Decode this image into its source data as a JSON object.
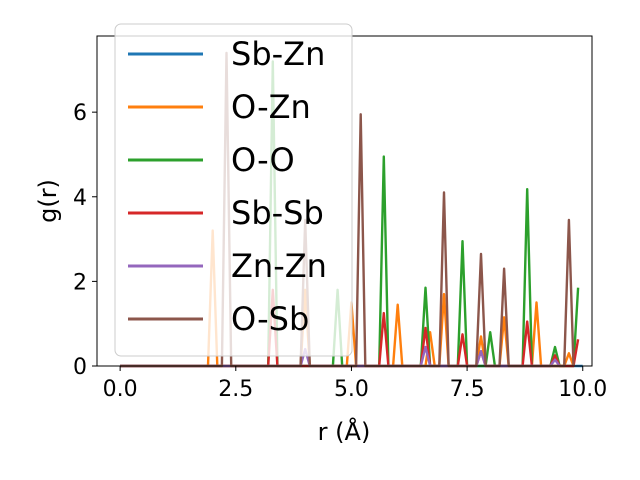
{
  "chart_data": {
    "type": "line",
    "title": "",
    "xlabel": "r (Å)",
    "ylabel": "g(r)",
    "xlim": [
      -0.5,
      10.2
    ],
    "ylim": [
      0,
      7.8
    ],
    "xticks": [
      0.0,
      2.5,
      5.0,
      7.5,
      10.0
    ],
    "xtick_labels": [
      "0.0",
      "2.5",
      "5.0",
      "7.5",
      "10.0"
    ],
    "yticks": [
      0,
      2,
      4,
      6
    ],
    "ytick_labels": [
      "0",
      "2",
      "4",
      "6"
    ],
    "grid": false,
    "legend_position": "upper-left",
    "series": [
      {
        "name": "Sb-Zn",
        "color": "#1f77b4",
        "x": [
          0,
          10
        ],
        "y": [
          0,
          0
        ]
      },
      {
        "name": "O-Zn",
        "color": "#ff7f0e",
        "x": [
          0,
          1.9,
          2.0,
          2.1,
          3.9,
          4.0,
          4.1,
          4.9,
          5.0,
          5.1,
          5.9,
          6.0,
          6.1,
          6.6,
          6.7,
          6.8,
          6.9,
          7.0,
          7.1,
          7.7,
          7.8,
          7.9,
          8.2,
          8.3,
          8.4,
          8.9,
          9.0,
          9.1,
          9.6,
          9.7,
          9.8
        ],
        "y": [
          0,
          0,
          3.2,
          0,
          0,
          1.8,
          0,
          0,
          1.5,
          0,
          0,
          1.45,
          0,
          0,
          0.8,
          0,
          0,
          1.7,
          0,
          0,
          0.7,
          0,
          0,
          1.15,
          0,
          0,
          1.5,
          0,
          0,
          0.3,
          0
        ]
      },
      {
        "name": "O-O",
        "color": "#2ca02c",
        "x": [
          0,
          3.2,
          3.3,
          3.4,
          4.6,
          4.7,
          4.8,
          5.6,
          5.7,
          5.8,
          6.5,
          6.6,
          6.7,
          7.3,
          7.4,
          7.5,
          7.9,
          8.0,
          8.1,
          8.7,
          8.8,
          8.9,
          9.3,
          9.4,
          9.5,
          9.8,
          9.9
        ],
        "y": [
          0,
          0,
          7.2,
          0,
          0,
          1.8,
          0,
          0,
          4.95,
          0,
          0,
          1.85,
          0,
          0,
          2.95,
          0,
          0,
          0.8,
          0,
          0,
          4.18,
          0,
          0,
          0.45,
          0,
          0,
          1.85
        ]
      },
      {
        "name": "Sb-Sb",
        "color": "#d62728",
        "x": [
          0,
          3.2,
          3.3,
          3.4,
          5.6,
          5.7,
          5.8,
          6.5,
          6.6,
          6.7,
          7.3,
          7.4,
          7.5,
          7.7,
          7.8,
          7.9,
          8.7,
          8.8,
          8.9,
          9.3,
          9.4,
          9.5,
          9.8,
          9.9
        ],
        "y": [
          0,
          0,
          1.8,
          0,
          0,
          1.25,
          0,
          0,
          0.9,
          0,
          0,
          0.75,
          0,
          0,
          0.35,
          0,
          0,
          1.05,
          0,
          0,
          0.25,
          0,
          0,
          0.63
        ]
      },
      {
        "name": "Zn-Zn",
        "color": "#9467bd",
        "x": [
          0,
          3.9,
          4.0,
          4.1,
          6.5,
          6.6,
          6.7,
          7.7,
          7.8,
          7.9,
          9.3,
          9.4,
          9.5
        ],
        "y": [
          0,
          0,
          0.4,
          0,
          0,
          0.45,
          0,
          0,
          0.35,
          0,
          0,
          0.15,
          0
        ]
      },
      {
        "name": "O-Sb",
        "color": "#8c564b",
        "x": [
          0,
          2.2,
          2.3,
          2.4,
          3.9,
          4.0,
          4.1,
          5.1,
          5.2,
          5.3,
          6.9,
          7.0,
          7.1,
          7.7,
          7.8,
          7.9,
          8.2,
          8.3,
          8.4,
          9.6,
          9.7,
          9.8
        ],
        "y": [
          0,
          0,
          7.4,
          0,
          0,
          3.45,
          0,
          0,
          5.95,
          0,
          0,
          4.1,
          0,
          0,
          2.65,
          0,
          0,
          2.3,
          0,
          0,
          3.45,
          0
        ]
      }
    ]
  }
}
